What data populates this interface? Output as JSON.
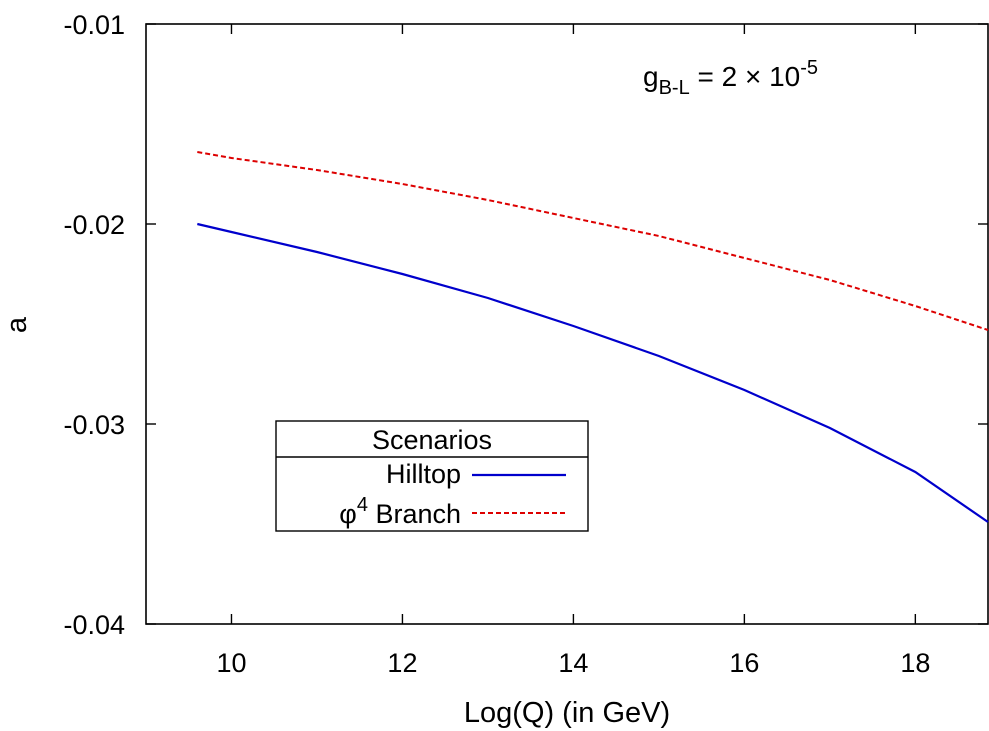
{
  "chart_data": {
    "type": "line",
    "xlabel": "Log(Q) (in GeV)",
    "ylabel": "a",
    "xlim": [
      9,
      18.85
    ],
    "ylim": [
      -0.04,
      -0.01
    ],
    "xticks": [
      10,
      12,
      14,
      16,
      18
    ],
    "yticks": [
      -0.04,
      -0.03,
      -0.02,
      -0.01
    ],
    "xtick_labels": [
      "10",
      "12",
      "14",
      "16",
      "18"
    ],
    "ytick_labels": [
      "-0.04",
      "-0.03",
      "-0.02",
      "-0.01"
    ],
    "grid": false,
    "legend": {
      "title": "Scenarios",
      "placement": "lower-left"
    },
    "annotation": {
      "base": "g",
      "subscript": "B-L",
      "middle": " = 2 × 10",
      "superscript": "-5"
    },
    "series": [
      {
        "name": "Hilltop",
        "label_main": "Hilltop",
        "color": "#0000cc",
        "dash": "solid",
        "x": [
          9.6,
          10,
          11,
          12,
          13,
          14,
          15,
          16,
          17,
          18,
          18.85
        ],
        "y": [
          -0.02,
          -0.0204,
          -0.0214,
          -0.0225,
          -0.0237,
          -0.0251,
          -0.0266,
          -0.0283,
          -0.0302,
          -0.0324,
          -0.0349
        ]
      },
      {
        "name": "φ4 Branch",
        "label_symbol": "φ",
        "label_sup": "4",
        "label_rest": " Branch",
        "color": "#dd0000",
        "dash": "dashed",
        "x": [
          9.6,
          10,
          11,
          12,
          13,
          14,
          15,
          16,
          17,
          18,
          18.85
        ],
        "y": [
          -0.0164,
          -0.0167,
          -0.0173,
          -0.018,
          -0.0188,
          -0.0197,
          -0.0206,
          -0.0217,
          -0.0228,
          -0.0241,
          -0.0253
        ]
      }
    ]
  }
}
